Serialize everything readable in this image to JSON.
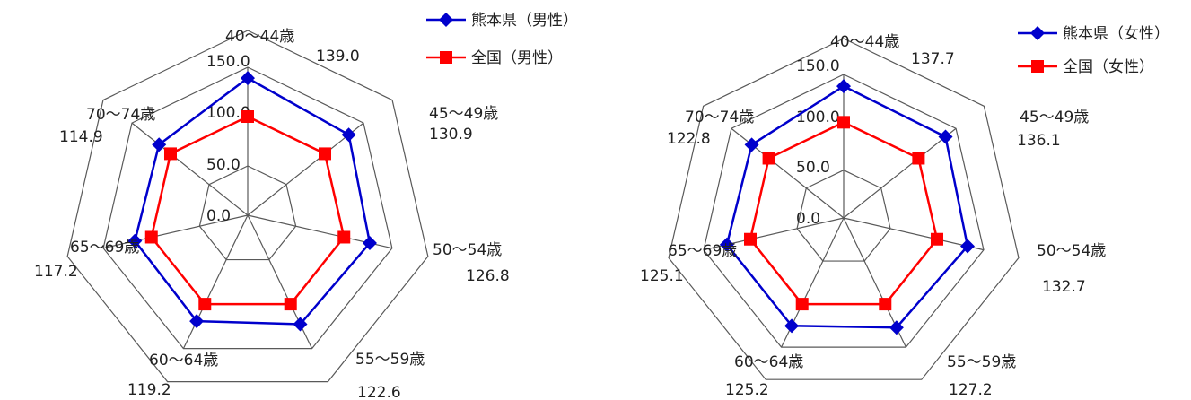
{
  "chart_data": [
    {
      "type": "radar",
      "categories": [
        "40～44歳",
        "45～49歳",
        "50～54歳",
        "55～59歳",
        "60～64歳",
        "65～69歳",
        "70～74歳"
      ],
      "rlim": [
        0,
        150
      ],
      "rticks": [
        "0.0",
        "50.0",
        "100.0",
        "150.0"
      ],
      "rtick_values": [
        0,
        50,
        100,
        150
      ],
      "grid": true,
      "legend_position": "top-right",
      "series": [
        {
          "name": "熊本県（男性）",
          "color": "#0000CC",
          "marker": "diamond",
          "values": [
            139.0,
            130.9,
            126.8,
            122.6,
            119.2,
            117.2,
            114.9
          ],
          "labels": [
            "139.0",
            "130.9",
            "126.8",
            "122.6",
            "119.2",
            "117.2",
            "114.9"
          ]
        },
        {
          "name": "全国（男性）",
          "color": "#FF0000",
          "marker": "square",
          "values": [
            100,
            100,
            100,
            100,
            100,
            100,
            100
          ]
        }
      ]
    },
    {
      "type": "radar",
      "categories": [
        "40～44歳",
        "45～49歳",
        "50～54歳",
        "55～59歳",
        "60～64歳",
        "65～69歳",
        "70～74歳"
      ],
      "rlim": [
        0,
        150
      ],
      "rticks": [
        "0.0",
        "50.0",
        "100.0",
        "150.0"
      ],
      "rtick_values": [
        0,
        50,
        100,
        150
      ],
      "grid": true,
      "legend_position": "top-right",
      "series": [
        {
          "name": "熊本県（女性）",
          "color": "#0000CC",
          "marker": "diamond",
          "values": [
            137.7,
            136.1,
            132.7,
            127.2,
            125.2,
            125.1,
            122.8
          ],
          "labels": [
            "137.7",
            "136.1",
            "132.7",
            "127.2",
            "125.2",
            "125.1",
            "122.8"
          ]
        },
        {
          "name": "全国（女性）",
          "color": "#FF0000",
          "marker": "square",
          "values": [
            100,
            100,
            100,
            100,
            100,
            100,
            100
          ]
        }
      ]
    }
  ]
}
